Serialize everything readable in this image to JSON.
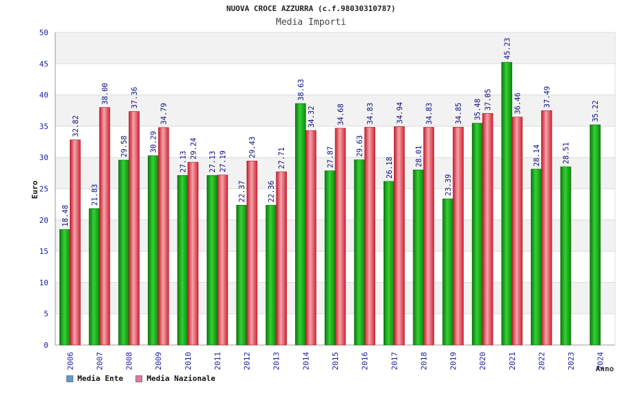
{
  "title": "NUOVA CROCE AZZURRA (c.f.98030310787)",
  "subtitle": "Media Importi",
  "legend": {
    "ente": {
      "label": "Media Ente",
      "color": "#5b9bd5"
    },
    "nazionale": {
      "label": "Media Nazionale",
      "color": "#e07a9a"
    }
  },
  "chart_data": {
    "type": "bar",
    "ylabel": "Euro",
    "xlabel": "Anno",
    "ylim": [
      0,
      50
    ],
    "yticks": [
      0,
      5,
      10,
      15,
      20,
      25,
      30,
      35,
      40,
      45,
      50
    ],
    "grid": "horizontal bands",
    "legend_placement": "bottom-left",
    "categories": [
      "2006",
      "2007",
      "2008",
      "2009",
      "2010",
      "2011",
      "2012",
      "2013",
      "2014",
      "2015",
      "2016",
      "2017",
      "2018",
      "2019",
      "2020",
      "2021",
      "2022",
      "2023",
      "2024"
    ],
    "series": [
      {
        "name": "Media Ente",
        "bar_color": "#19a619",
        "values": [
          18.48,
          21.83,
          29.58,
          30.29,
          27.13,
          27.13,
          22.37,
          22.36,
          38.63,
          27.87,
          29.63,
          26.18,
          28.01,
          23.39,
          35.48,
          45.23,
          28.14,
          28.51,
          35.22
        ],
        "labels": [
          "18.48",
          "21.83",
          "29.58",
          "30.29",
          "27.13",
          "27.13",
          "22.37",
          "22.36",
          "38.63",
          "27.87",
          "29.63",
          "26.18",
          "28.01",
          "23.39",
          "35.48",
          "45.23",
          "28.14",
          "28.51",
          "35.22"
        ]
      },
      {
        "name": "Media Nazionale",
        "bar_color": "#e23a4a",
        "values": [
          32.82,
          38.0,
          37.36,
          34.79,
          29.24,
          27.19,
          29.43,
          27.71,
          34.32,
          34.68,
          34.83,
          34.94,
          34.83,
          34.85,
          37.05,
          36.46,
          37.49,
          null,
          null
        ],
        "labels": [
          "32.82",
          "38.00",
          "37.36",
          "34.79",
          "29.24",
          "27.19",
          "29.43",
          "27.71",
          "34.32",
          "34.68",
          "34.83",
          "34.94",
          "34.83",
          "34.85",
          "37.05",
          "36.46",
          "37.49",
          null,
          null
        ]
      }
    ]
  }
}
